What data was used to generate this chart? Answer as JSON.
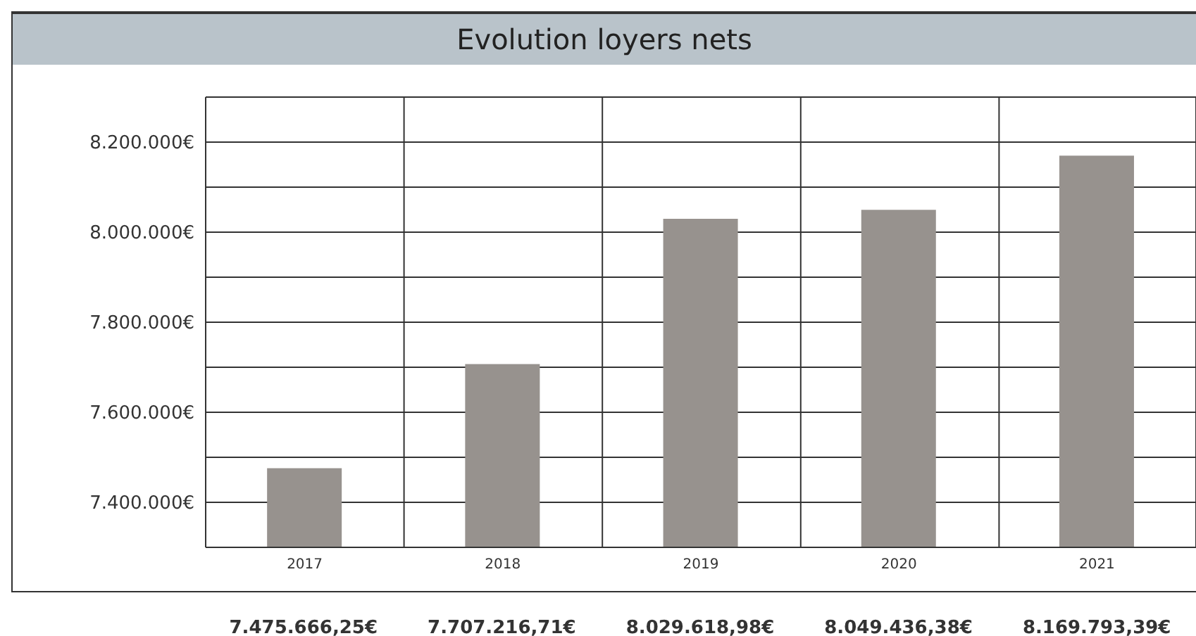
{
  "chart_data": {
    "type": "bar",
    "title": "Evolution loyers nets",
    "categories": [
      "2017",
      "2018",
      "2019",
      "2020",
      "2021"
    ],
    "values": [
      7475666.25,
      7707216.71,
      8029618.98,
      8049436.38,
      8169793.39
    ],
    "color": "#97928e",
    "value_labels": [
      "7.475.666,25€",
      "7.707.216,71€",
      "8.029.618,98€",
      "8.049.436,38€",
      "8.169.793,39€"
    ],
    "ylim": [
      7300000,
      8300000
    ],
    "yticks": [
      {
        "value": 7300000,
        "label": null
      },
      {
        "value": 7400000,
        "label": "7.400.000€"
      },
      {
        "value": 7500000,
        "label": null
      },
      {
        "value": 7600000,
        "label": "7.600.000€"
      },
      {
        "value": 7700000,
        "label": null
      },
      {
        "value": 7800000,
        "label": "7.800.000€"
      },
      {
        "value": 7900000,
        "label": null
      },
      {
        "value": 8000000,
        "label": "8.000.000€"
      },
      {
        "value": 8100000,
        "label": null
      },
      {
        "value": 8200000,
        "label": "8.200.000€"
      },
      {
        "value": 8300000,
        "label": null
      }
    ],
    "grid": true
  }
}
